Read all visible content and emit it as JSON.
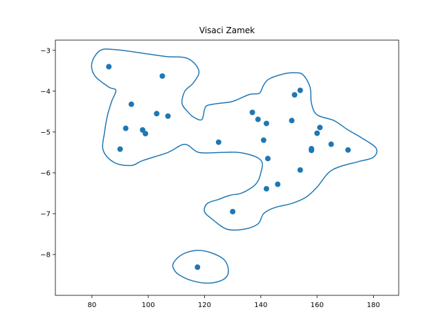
{
  "chart_data": {
    "type": "scatter",
    "title": "Visaci Zamek",
    "xlabel": "",
    "ylabel": "",
    "xlim": [
      67,
      189
    ],
    "ylim": [
      -9.0,
      -2.75
    ],
    "xticks": [
      80,
      100,
      120,
      140,
      160,
      180
    ],
    "yticks": [
      -3,
      -4,
      -5,
      -6,
      -7,
      -8
    ],
    "xtick_labels": [
      "80",
      "100",
      "120",
      "140",
      "160",
      "180"
    ],
    "ytick_labels": [
      "−3",
      "−4",
      "−5",
      "−6",
      "−7",
      "−8"
    ],
    "grid": false,
    "color": "#1f77b4",
    "points": [
      {
        "x": 86,
        "y": -3.4
      },
      {
        "x": 105,
        "y": -3.63
      },
      {
        "x": 94,
        "y": -4.32
      },
      {
        "x": 103,
        "y": -4.55
      },
      {
        "x": 107,
        "y": -4.61
      },
      {
        "x": 92,
        "y": -4.91
      },
      {
        "x": 98,
        "y": -4.95
      },
      {
        "x": 99,
        "y": -5.04
      },
      {
        "x": 90,
        "y": -5.42
      },
      {
        "x": 125,
        "y": -5.25
      },
      {
        "x": 137,
        "y": -4.52
      },
      {
        "x": 139,
        "y": -4.69
      },
      {
        "x": 142,
        "y": -4.79
      },
      {
        "x": 141,
        "y": -5.2
      },
      {
        "x": 142.5,
        "y": -5.65
      },
      {
        "x": 154,
        "y": -3.98
      },
      {
        "x": 152,
        "y": -4.09
      },
      {
        "x": 151,
        "y": -4.72
      },
      {
        "x": 161,
        "y": -4.89
      },
      {
        "x": 160,
        "y": -5.03
      },
      {
        "x": 165,
        "y": -5.3
      },
      {
        "x": 171,
        "y": -5.44
      },
      {
        "x": 158,
        "y": -5.41
      },
      {
        "x": 158,
        "y": -5.45
      },
      {
        "x": 154,
        "y": -5.93
      },
      {
        "x": 146,
        "y": -6.28
      },
      {
        "x": 142,
        "y": -6.39
      },
      {
        "x": 130,
        "y": -6.95
      },
      {
        "x": 117.5,
        "y": -8.31
      }
    ],
    "contours": [
      [
        [
          80,
          -3.3
        ],
        [
          83,
          -3.0
        ],
        [
          88,
          -2.98
        ],
        [
          96,
          -3.05
        ],
        [
          106,
          -3.15
        ],
        [
          114,
          -3.2
        ],
        [
          118,
          -3.5
        ],
        [
          116,
          -3.8
        ],
        [
          113,
          -4.0
        ],
        [
          112,
          -4.3
        ],
        [
          114,
          -4.5
        ],
        [
          116,
          -4.63
        ],
        [
          119,
          -4.7
        ],
        [
          120,
          -4.45
        ],
        [
          121,
          -4.35
        ],
        [
          125,
          -4.3
        ],
        [
          130,
          -4.25
        ],
        [
          136,
          -4.08
        ],
        [
          139.5,
          -4.05
        ],
        [
          141,
          -3.85
        ],
        [
          143,
          -3.7
        ],
        [
          148,
          -3.58
        ],
        [
          152,
          -3.55
        ],
        [
          155,
          -3.6
        ],
        [
          157.5,
          -3.9
        ],
        [
          158,
          -4.3
        ],
        [
          160,
          -4.58
        ],
        [
          166,
          -4.72
        ],
        [
          171,
          -4.95
        ],
        [
          176,
          -5.15
        ],
        [
          181,
          -5.4
        ],
        [
          180,
          -5.62
        ],
        [
          175,
          -5.72
        ],
        [
          168,
          -5.85
        ],
        [
          164,
          -6.0
        ],
        [
          160,
          -6.35
        ],
        [
          156,
          -6.6
        ],
        [
          151,
          -6.75
        ],
        [
          145,
          -6.85
        ],
        [
          141,
          -7.0
        ],
        [
          139,
          -7.25
        ],
        [
          134,
          -7.38
        ],
        [
          128,
          -7.38
        ],
        [
          123,
          -7.15
        ],
        [
          120,
          -6.95
        ],
        [
          121,
          -6.75
        ],
        [
          125,
          -6.65
        ],
        [
          129,
          -6.55
        ],
        [
          133,
          -6.5
        ],
        [
          137,
          -6.35
        ],
        [
          139,
          -6.2
        ],
        [
          140,
          -6.0
        ],
        [
          140.5,
          -5.75
        ],
        [
          138,
          -5.6
        ],
        [
          132,
          -5.5
        ],
        [
          126,
          -5.5
        ],
        [
          118,
          -5.5
        ],
        [
          113,
          -5.3
        ],
        [
          107,
          -5.5
        ],
        [
          98,
          -5.7
        ],
        [
          94,
          -5.82
        ],
        [
          88,
          -5.75
        ],
        [
          84,
          -5.45
        ],
        [
          84.5,
          -5.0
        ],
        [
          85.5,
          -4.6
        ],
        [
          87,
          -4.25
        ],
        [
          88.5,
          -3.98
        ],
        [
          86,
          -3.9
        ],
        [
          81,
          -3.62
        ],
        [
          80,
          -3.3
        ]
      ],
      [
        [
          109,
          -8.2
        ],
        [
          112,
          -8.0
        ],
        [
          117,
          -7.9
        ],
        [
          122,
          -7.95
        ],
        [
          127,
          -8.13
        ],
        [
          128.5,
          -8.4
        ],
        [
          127,
          -8.6
        ],
        [
          122,
          -8.7
        ],
        [
          116,
          -8.65
        ],
        [
          111,
          -8.5
        ],
        [
          109,
          -8.35
        ],
        [
          109,
          -8.2
        ]
      ]
    ]
  }
}
